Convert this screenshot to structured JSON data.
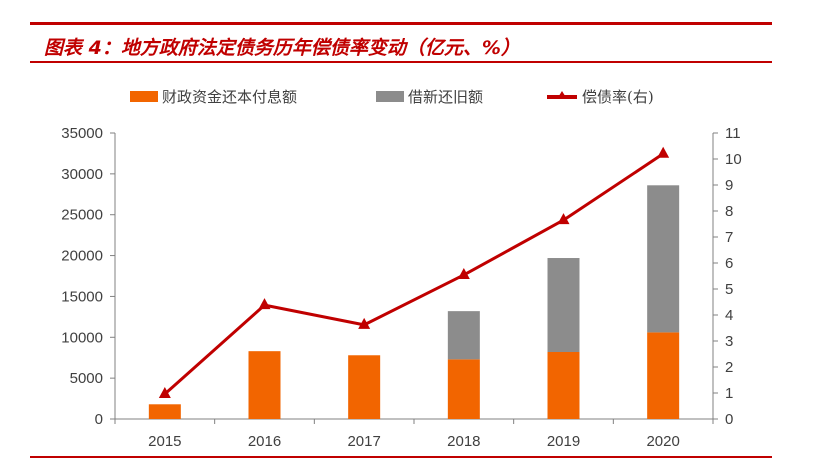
{
  "title": "图表 4：地方政府法定债务历年偿债率变动（亿元、%）",
  "colors": {
    "accent": "#c00000",
    "series1": "#f26500",
    "series2": "#8c8c8c",
    "line": "#c00000"
  },
  "chart_data": {
    "type": "bar",
    "stacked": true,
    "categories": [
      "2015",
      "2016",
      "2017",
      "2018",
      "2019",
      "2020"
    ],
    "series": [
      {
        "name": "财政资金还本付息额",
        "type": "bar",
        "axis": "left",
        "values": [
          1800,
          8300,
          7800,
          7300,
          8200,
          10600
        ]
      },
      {
        "name": "借新还旧额",
        "type": "bar",
        "axis": "left",
        "values": [
          0,
          0,
          0,
          5900,
          11500,
          18000
        ]
      },
      {
        "name": "偿债率(右)",
        "type": "line",
        "axis": "right",
        "marker": "triangle",
        "values": [
          0.96,
          4.38,
          3.62,
          5.54,
          7.65,
          10.2
        ]
      }
    ],
    "ylim_left": [
      0,
      35000
    ],
    "yticks_left": [
      "0",
      "5000",
      "10000",
      "15000",
      "20000",
      "25000",
      "30000",
      "35000"
    ],
    "ylim_right": [
      0,
      11
    ],
    "yticks_right": [
      "0",
      "1",
      "2",
      "3",
      "4",
      "5",
      "6",
      "7",
      "8",
      "9",
      "10",
      "11"
    ],
    "grid": false,
    "legend": "top"
  }
}
